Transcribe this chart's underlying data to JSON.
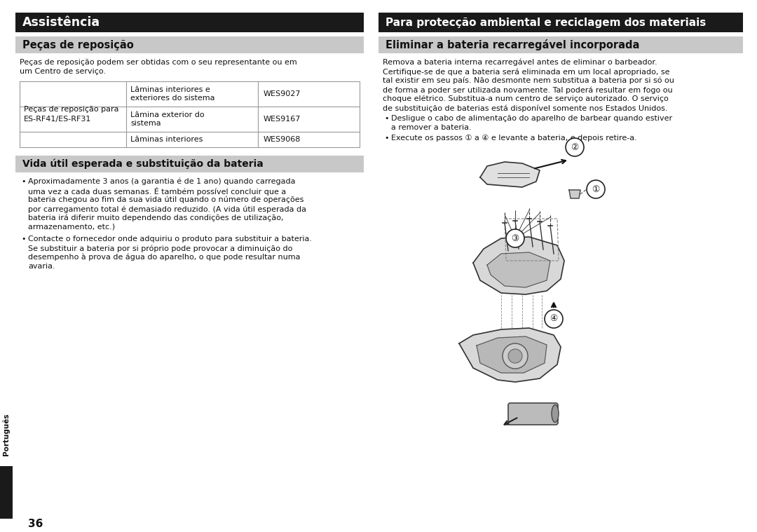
{
  "bg_color": "#ffffff",
  "header_dark_bg": "#1a1a1a",
  "header_light_bg": "#c8c8c8",
  "header_text_color": "#ffffff",
  "subheader_text_color": "#111111",
  "body_text_color": "#111111",
  "left_title": "Assistência",
  "right_title": "Para protecção ambiental e reciclagem dos materiais",
  "left_sub1": "Peças de reposição",
  "left_sub1_text1": "Peças de reposição podem ser obtidas com o seu representante ou em",
  "left_sub1_text2": "um Centro de serviço.",
  "table_col1": "Peças de reposição para\nES-RF41/ES-RF31",
  "table_rows": [
    [
      "Lâminas interiores e\nexteriores do sistema",
      "WES9027"
    ],
    [
      "Lâmina exterior do\nsistema",
      "WES9167"
    ],
    [
      "Lâminas interiores",
      "WES9068"
    ]
  ],
  "left_sub2": "Vida útil esperada e substituição da bateria",
  "left_sub2_b1_lines": [
    "Aproximadamente 3 anos (a garantia é de 1 ano) quando carregada",
    "uma vez a cada duas semanas. É também possível concluir que a",
    "bateria chegou ao fim da sua vida útil quando o número de operações",
    "por carregamento total é demasiado reduzido. (A vida útil esperada da",
    "bateria irá diferir muito dependendo das condições de utilização,",
    "armazenamento, etc.)"
  ],
  "left_sub2_b2_lines": [
    "Contacte o fornecedor onde adquiriu o produto para substituir a bateria.",
    "Se substituir a bateria por si próprio pode provocar a diminuição do",
    "desempenho à prova de água do aparelho, o que pode resultar numa",
    "avaria."
  ],
  "right_sub1": "Eliminar a bateria recarregável incorporada",
  "right_body_lines": [
    "Remova a bateria interna recarregável antes de eliminar o barbeador.",
    "Certifique-se de que a bateria será eliminada em um local apropriado, se",
    "tal existir em seu país. Não desmonte nem substitua a bateria por si só ou",
    "de forma a poder ser utilizada novamente. Tal poderá resultar em fogo ou",
    "choque elétrico. Substitua-a num centro de serviço autorizado. O serviço",
    "de substituição de baterias está disponível somente nos Estados Unidos."
  ],
  "right_b1_lines": [
    "Desligue o cabo de alimentação do aparelho de barbear quando estiver",
    "a remover a bateria."
  ],
  "right_b2_lines": [
    "Execute os passos ① a ④ e levante a bateria, e depois retire-a."
  ],
  "side_label": "Português",
  "page_num": "36",
  "border_color": "#888888",
  "table_border": "#999999"
}
